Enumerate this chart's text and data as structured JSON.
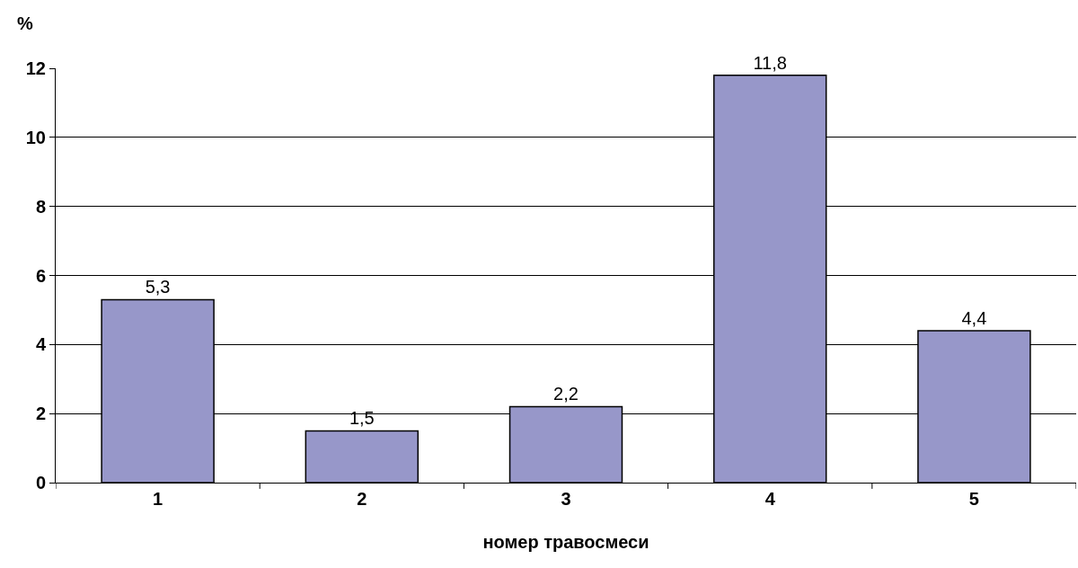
{
  "chart_data": {
    "type": "bar",
    "xlabel": "номер травосмеси",
    "ylabel": "%",
    "categories": [
      "1",
      "2",
      "3",
      "4",
      "5"
    ],
    "values": [
      5.3,
      1.5,
      2.2,
      11.8,
      4.4
    ],
    "value_labels": [
      "5,3",
      "1,5",
      "2,2",
      "11,8",
      "4,4"
    ],
    "color": "#9797c9",
    "ylim": [
      0,
      12
    ],
    "yticks": [
      0,
      2,
      4,
      6,
      8,
      10,
      12
    ],
    "grid": "y"
  }
}
